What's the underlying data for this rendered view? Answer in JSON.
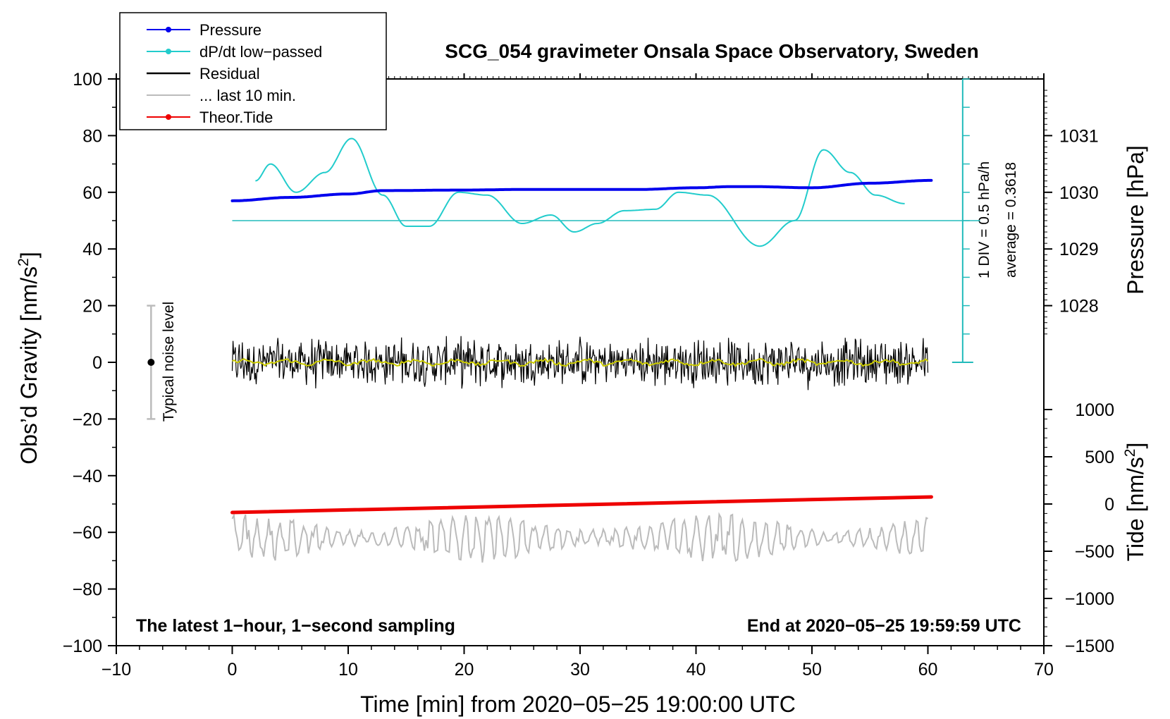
{
  "chart_data": {
    "type": "line",
    "title": "SCG_054 gravimeter Onsala Space Observatory, Sweden",
    "xlabel": "Time [min] from 2020−05−25 19:00:00 UTC",
    "ylabel_left": "Obs’d Gravity [nm/s",
    "ylabel_left_sup": "2",
    "ylabel_left_end": "]",
    "ylabel_right_pressure": "Pressure [hPa]",
    "ylabel_right_tide": "Tide [nm/s",
    "ylabel_right_tide_sup": "2",
    "ylabel_right_tide_end": "]",
    "xlim": [
      -10,
      70
    ],
    "ylim": [
      -100,
      100
    ],
    "x_ticks": [
      -10,
      0,
      10,
      20,
      30,
      40,
      50,
      60,
      70
    ],
    "x_tick_labels": [
      "−10",
      "0",
      "10",
      "20",
      "30",
      "40",
      "50",
      "60",
      "70"
    ],
    "y_ticks": [
      -100,
      -80,
      -60,
      -40,
      -20,
      0,
      20,
      40,
      60,
      80,
      100
    ],
    "y_tick_labels": [
      "−100",
      "−80",
      "−60",
      "−40",
      "−20",
      "0",
      "20",
      "40",
      "60",
      "80",
      "100"
    ],
    "pressure_ticks": [
      1028,
      1029,
      1030,
      1031
    ],
    "pressure_tick_labels": [
      "1028",
      "1029",
      "1030",
      "1031"
    ],
    "pressure_axis": {
      "gravity_at_1028": 20,
      "gravity_per_hPa": 20
    },
    "tide_ticks": [
      -1500,
      -1000,
      -500,
      0,
      500,
      1000
    ],
    "tide_tick_labels": [
      "−1500",
      "−1000",
      "−500",
      "0",
      "500",
      "1000"
    ],
    "tide_axis": {
      "gravity_at_0": -50,
      "tide_per_gravity_unit": 30
    },
    "bottom_left_note": "The latest 1−hour, 1−second sampling",
    "bottom_right_note": "End at 2020−05−25 19:59:59 UTC",
    "noise_label": "Typical noise level",
    "noise_bar": {
      "x": -7,
      "center": 0,
      "half_range": 20
    },
    "dpdt_scale_label": "1 DIV = 0.5 hPa/h",
    "dpdt_average_label": "average = 0.3618",
    "dpdt_scale_axis": {
      "x": 63,
      "y_min": 0,
      "y_max": 100,
      "baseline": 50
    },
    "legend": [
      {
        "label": "Pressure",
        "color": "#0000ee",
        "marker": true
      },
      {
        "label": "dP/dt low−passed",
        "color": "#22cccc",
        "marker": true
      },
      {
        "label": "Residual",
        "color": "#000000",
        "marker": false
      },
      {
        "label": "... last 10 min.",
        "color": "#bbbbbb",
        "marker": false
      },
      {
        "label": "Theor.Tide",
        "color": "#ee0000",
        "marker": true
      }
    ],
    "series": [
      {
        "name": "Pressure",
        "unit": "hPa",
        "color": "#0000ee",
        "x": [
          0,
          5,
          10,
          13,
          20,
          25,
          30,
          35,
          40,
          43,
          45,
          50,
          55,
          60.3
        ],
        "values": [
          1029.85,
          1029.91,
          1029.97,
          1030.03,
          1030.04,
          1030.05,
          1030.05,
          1030.05,
          1030.08,
          1030.1,
          1030.1,
          1030.08,
          1030.16,
          1030.21
        ]
      },
      {
        "name": "dP/dt low−passed",
        "unit": "gravity-axis units",
        "color": "#22cccc",
        "x": [
          2,
          3.3,
          5.5,
          8,
          10.3,
          13,
          15,
          17,
          19.5,
          22,
          25,
          27.5,
          29.5,
          31.5,
          33.8,
          36.5,
          38.5,
          41,
          45.5,
          48.5,
          51,
          53.3,
          55.5,
          58
        ],
        "values": [
          64,
          70,
          60,
          67,
          79,
          59,
          48,
          48,
          60,
          59,
          49,
          52,
          46,
          49,
          53.5,
          54,
          60,
          59,
          41,
          50,
          75,
          67,
          59,
          56
        ]
      },
      {
        "name": "Residual",
        "unit": "nm/s2",
        "color": "#000000",
        "x_range": [
          0,
          60
        ],
        "mean": 0,
        "amplitude": 10
      },
      {
        "name": "Residual (smoothed)",
        "unit": "nm/s2",
        "color": "#cccc00",
        "x_range": [
          0,
          60
        ],
        "mean": 0
      },
      {
        "name": "... last 10 min.",
        "unit": "nm/s2 (expanded time, offset)",
        "color": "#bbbbbb",
        "x_range": [
          0,
          60
        ],
        "center": -62,
        "amplitude": 7
      },
      {
        "name": "Theor.Tide",
        "unit": "nm/s2",
        "color": "#ee0000",
        "x": [
          0,
          60.3
        ],
        "tide_values": [
          -90,
          75
        ]
      }
    ]
  }
}
